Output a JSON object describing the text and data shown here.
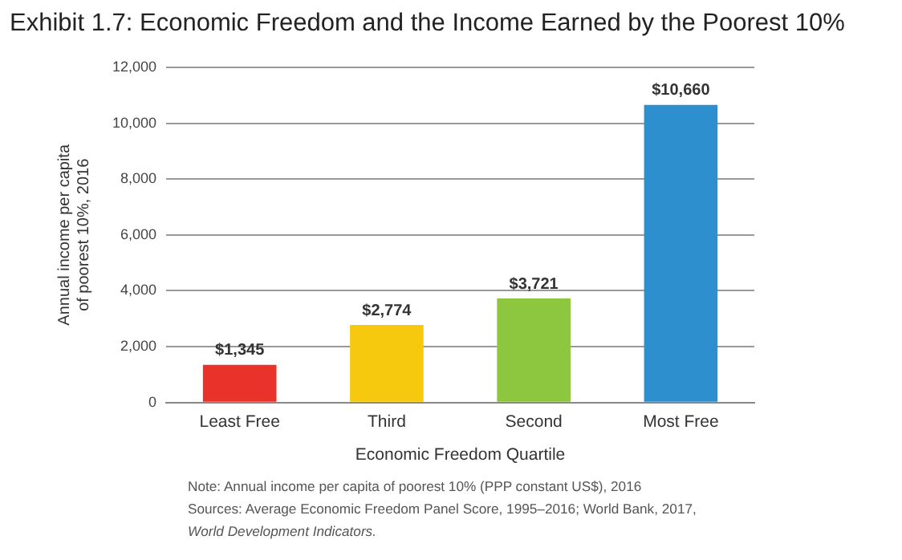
{
  "chart_data": {
    "type": "bar",
    "title": "Exhibit 1.7: Economic Freedom and the Income Earned by the Poorest 10%",
    "categories": [
      "Least Free",
      "Third",
      "Second",
      "Most Free"
    ],
    "values": [
      1345,
      2774,
      3721,
      10660
    ],
    "value_labels": [
      "$1,345",
      "$2,774",
      "$3,721",
      "$10,660"
    ],
    "colors": [
      "#e8322a",
      "#f6c90e",
      "#8dc63f",
      "#2e8fce"
    ],
    "xlabel": "Economic Freedom Quartile",
    "ylabel": "Annual income per capita\nof poorest 10%, 2016",
    "ylim": [
      0,
      12000
    ],
    "yticks": [
      {
        "value": 0,
        "label": "0"
      },
      {
        "value": 2000,
        "label": "2,000"
      },
      {
        "value": 4000,
        "label": "4,000"
      },
      {
        "value": 6000,
        "label": "6,000"
      },
      {
        "value": 8000,
        "label": "8,000"
      },
      {
        "value": 10000,
        "label": "10,000"
      },
      {
        "value": 12000,
        "label": "12,000"
      }
    ],
    "grid": "y",
    "legend": false,
    "annotations": [
      "Note: Annual income per capita of poorest 10% (PPP constant US$), 2016",
      "Sources: Average Economic Freedom Panel Score, 1995–2016; World Bank, 2017,",
      "World Development Indicators."
    ]
  }
}
